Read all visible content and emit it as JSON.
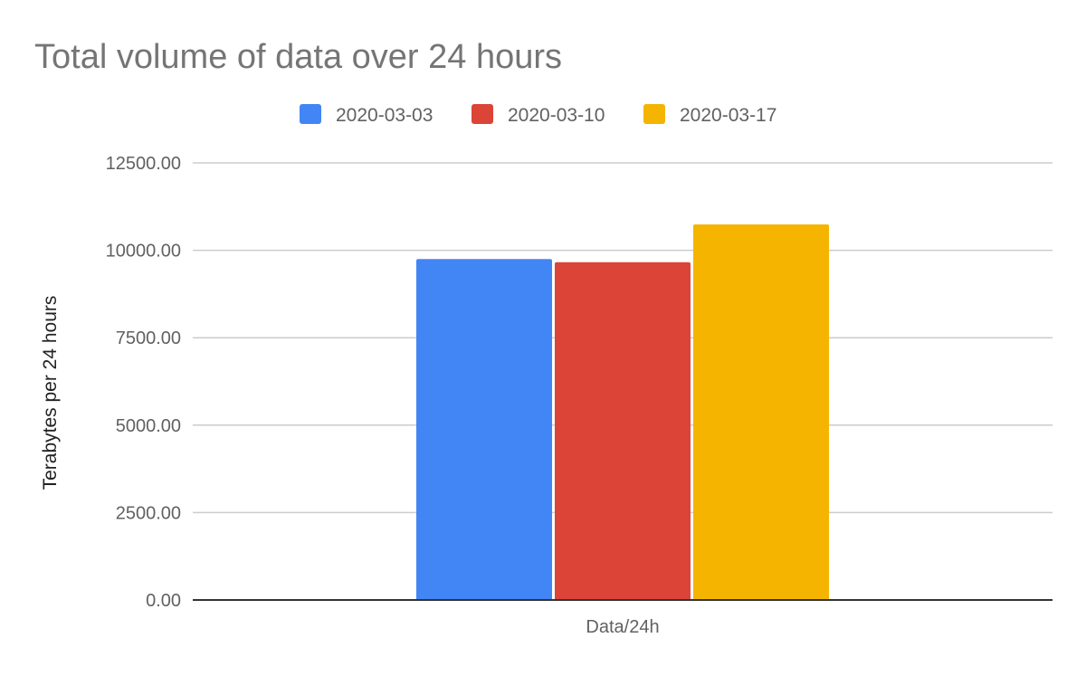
{
  "chart_data": {
    "type": "bar",
    "title": "Total volume of data over 24 hours",
    "xlabel": "",
    "ylabel": "Terabytes per 24 hours",
    "categories": [
      "Data/24h"
    ],
    "series": [
      {
        "name": "2020-03-03",
        "values": [
          9750
        ],
        "color": "#4285f4"
      },
      {
        "name": "2020-03-10",
        "values": [
          9660
        ],
        "color": "#db4437"
      },
      {
        "name": "2020-03-17",
        "values": [
          10740
        ],
        "color": "#f4b400"
      }
    ],
    "ylim": [
      0,
      12500
    ],
    "yticks": [
      0,
      2500,
      5000,
      7500,
      10000,
      12500
    ],
    "ytick_labels": [
      "0.00",
      "2500.00",
      "5000.00",
      "7500.00",
      "10000.00",
      "12500.00"
    ],
    "grid": true,
    "legend_position": "top"
  }
}
